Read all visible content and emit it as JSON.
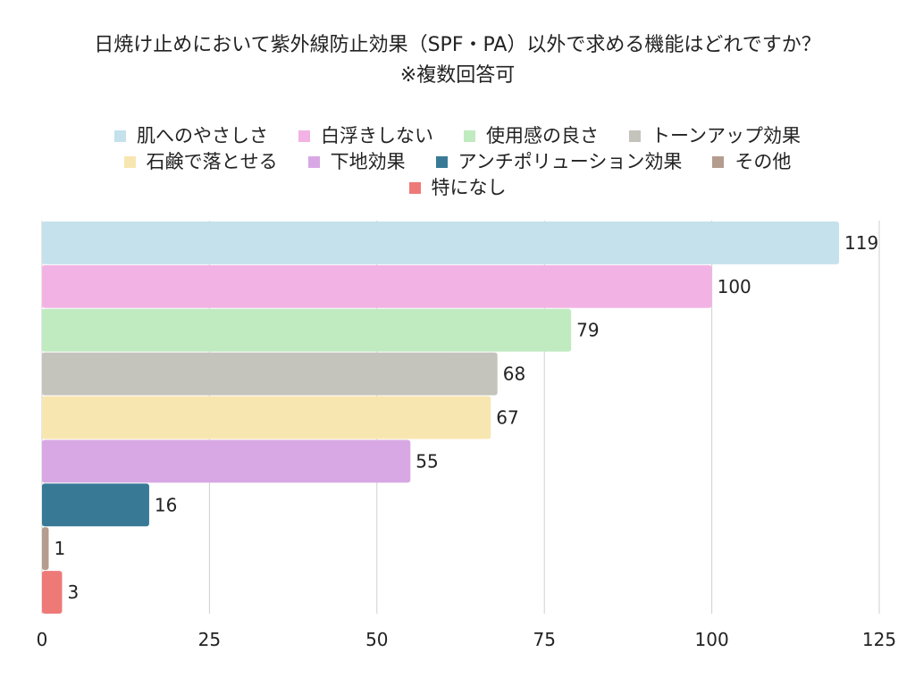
{
  "chart_data": {
    "type": "bar",
    "orientation": "horizontal",
    "title_line1": "日焼け止めにおいて紫外線防止効果（SPF・PA）以外で求める機能はどれですか？",
    "title_line2": "※複数回答可",
    "categories": [
      "肌へのやさしさ",
      "白浮きしない",
      "使用感の良さ",
      "トーンアップ効果",
      "石鹸で落とせる",
      "下地効果",
      "アンチポリューション効果",
      "その他",
      "特になし"
    ],
    "values": [
      119,
      100,
      79,
      68,
      67,
      55,
      16,
      1,
      3
    ],
    "colors": [
      "#c4e1ec",
      "#f2b3e4",
      "#c0ebc0",
      "#c4c4bc",
      "#f8e6b1",
      "#d8a8e4",
      "#387a96",
      "#b49c8e",
      "#ee7a78"
    ],
    "xlim": [
      0,
      125
    ],
    "xticks": [
      0,
      25,
      50,
      75,
      100,
      125
    ],
    "grid": true,
    "legend_position": "top"
  }
}
